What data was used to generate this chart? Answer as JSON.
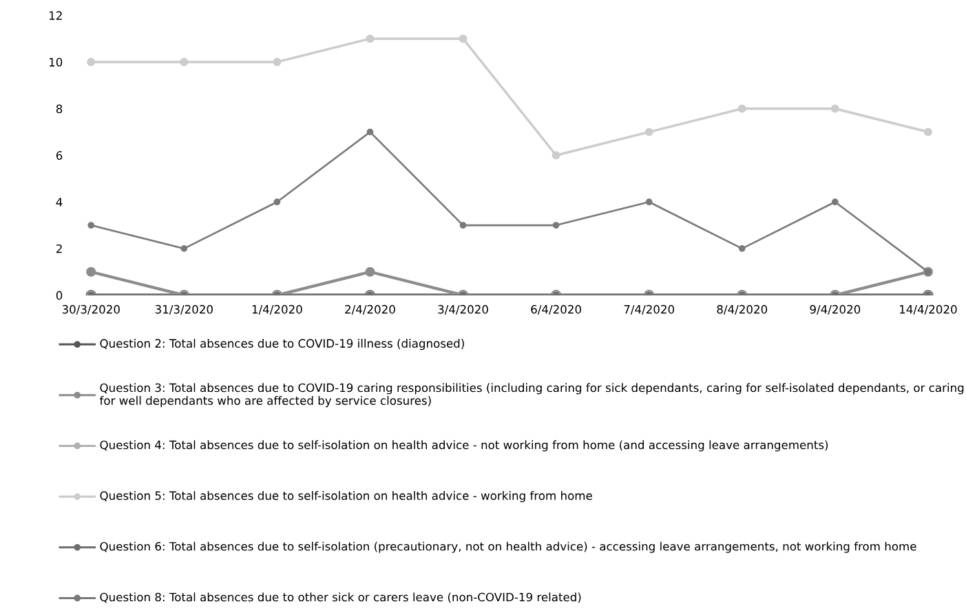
{
  "chart_data": {
    "type": "line",
    "categories": [
      "30/3/2020",
      "31/3/2020",
      "1/4/2020",
      "2/4/2020",
      "3/4/2020",
      "6/4/2020",
      "7/4/2020",
      "8/4/2020",
      "9/4/2020",
      "14/4/2020"
    ],
    "series": [
      {
        "name": "Question 2: Total absences due to COVID-19 illness (diagnosed)",
        "color": "#555555",
        "values": [
          0,
          0,
          0,
          0,
          0,
          0,
          0,
          0,
          0,
          0
        ]
      },
      {
        "name": "Question 3: Total absences due to COVID-19 caring responsibilities (including caring for sick dependants, caring for self-isolated dependants, or caring for well dependants who are affected by service closures)",
        "color": "#8c8c8c",
        "values": [
          1,
          0,
          0,
          1,
          0,
          0,
          0,
          0,
          0,
          1
        ]
      },
      {
        "name": "Question 4: Total absences due to self-isolation on health advice - not working from home (and accessing leave arrangements)",
        "color": "#b0b0b0",
        "values": [
          0,
          0,
          0,
          0,
          0,
          0,
          0,
          0,
          0,
          0
        ]
      },
      {
        "name": "Question 5: Total absences due to self-isolation on health advice - working from home",
        "color": "#cccccc",
        "values": [
          10,
          10,
          10,
          11,
          11,
          6,
          7,
          8,
          8,
          7
        ]
      },
      {
        "name": "Question 6: Total absences due to self-isolation (precautionary, not on health advice) - accessing leave arrangements, not working from home",
        "color": "#6e6e6e",
        "values": [
          0,
          0,
          0,
          0,
          0,
          0,
          0,
          0,
          0,
          0
        ]
      },
      {
        "name": "Question 8: Total absences due to other sick or carers leave (non-COVID-19 related)",
        "color": "#7a7a7a",
        "values": [
          3,
          2,
          4,
          7,
          3,
          3,
          4,
          2,
          4,
          1
        ]
      }
    ],
    "ylim": [
      0,
      12
    ],
    "yticks": [
      0,
      2,
      4,
      6,
      8,
      10,
      12
    ],
    "marker": "circle",
    "grid": false,
    "legend": "bottom"
  }
}
